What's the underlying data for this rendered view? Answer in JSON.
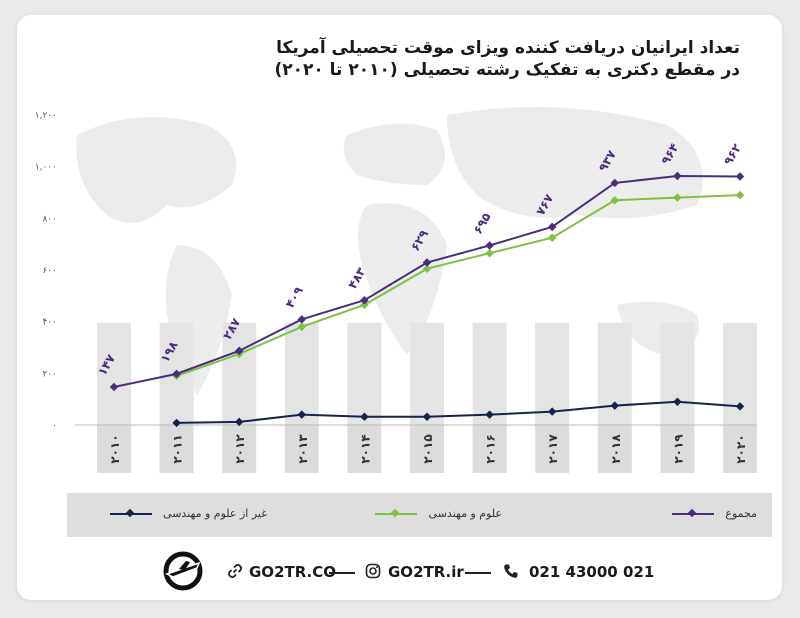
{
  "title": {
    "line1": "تعداد ایرانیان دریافت کننده ویزای موقت تحصیلی آمریکا",
    "line2": "در مقطع دکتری به تفکیک رشته تحصیلی (۲۰۱۰ تا ۲۰۲۰)"
  },
  "chart_data": {
    "type": "line",
    "categories": [
      "۲۰۱۰",
      "۲۰۱۱",
      "۲۰۱۲",
      "۲۰۱۳",
      "۲۰۱۴",
      "۲۰۱۵",
      "۲۰۱۶",
      "۲۰۱۷",
      "۲۰۱۸",
      "۲۰۱۹",
      "۲۰۲۰"
    ],
    "yticks": [
      "۰",
      "۲۰۰",
      "۴۰۰",
      "۶۰۰",
      "۸۰۰",
      "۱,۰۰۰",
      "۱,۲۰۰"
    ],
    "ylim": [
      0,
      1200
    ],
    "grid": false,
    "legend_position": "bottom",
    "series": [
      {
        "name": "مجموع",
        "color": "#4b2c7f",
        "values": [
          147,
          198,
          287,
          409,
          483,
          629,
          695,
          767,
          937,
          964,
          962
        ],
        "labels": [
          "۱۴۷",
          "۱۹۸",
          "۲۸۷",
          "۴۰۹",
          "۴۸۳",
          "۶۲۹",
          "۶۹۵",
          "۷۶۷",
          "۹۳۷",
          "۹۶۴",
          "۹۶۲"
        ]
      },
      {
        "name": "علوم و مهندسی",
        "color": "#7cc243",
        "values": [
          null,
          190,
          275,
          380,
          465,
          605,
          665,
          725,
          870,
          880,
          890
        ]
      },
      {
        "name": "غیر از علوم و مهندسی",
        "color": "#16234d",
        "values": [
          null,
          8,
          12,
          40,
          32,
          32,
          40,
          52,
          75,
          90,
          72
        ]
      }
    ]
  },
  "legend": {
    "total": "مجموع",
    "science": "علوم و مهندسی",
    "nonscience": "غیر از علوم و مهندسی"
  },
  "footer": {
    "website": "GO2TR.CO",
    "instagram": "GO2TR.ir",
    "phone": "021 43000 021"
  },
  "icons": [
    "plane-logo-icon",
    "link-icon",
    "instagram-icon",
    "phone-icon"
  ],
  "colors": {
    "total": "#4b2c7f",
    "science": "#7cc243",
    "nonscience": "#16234d",
    "column": "#e3e3e3"
  }
}
